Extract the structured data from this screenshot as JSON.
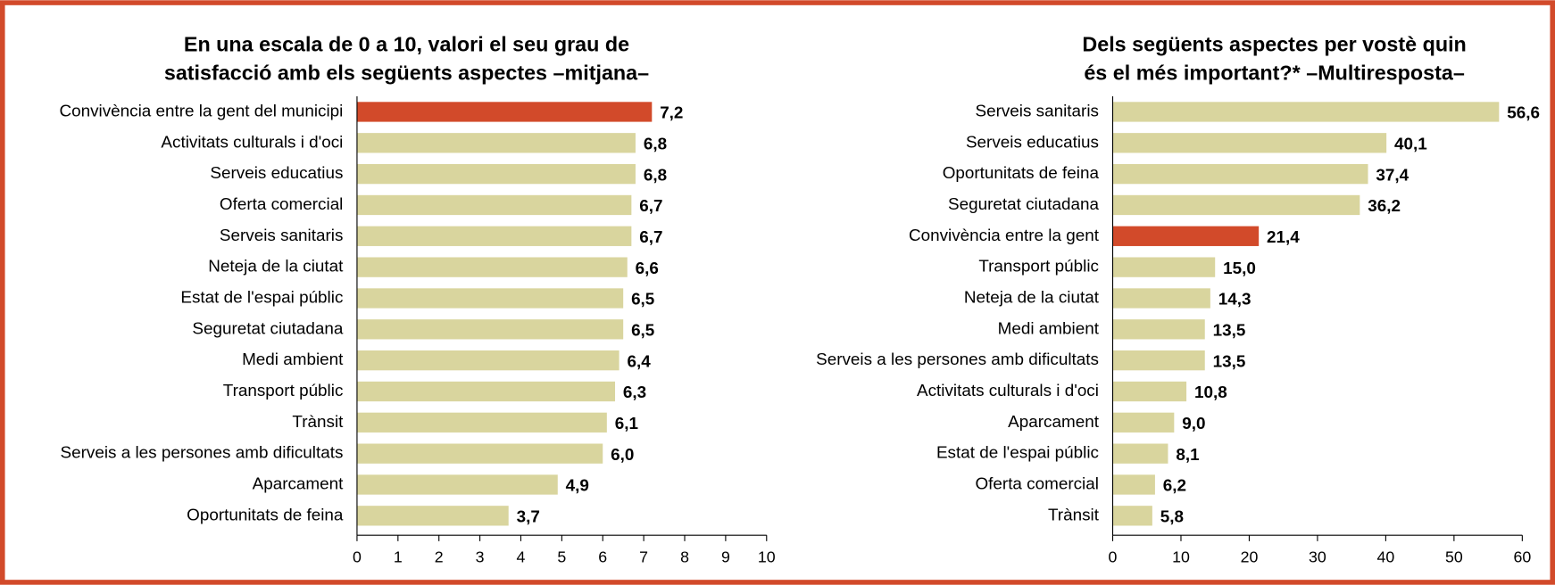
{
  "chart_data": [
    {
      "type": "bar",
      "orientation": "horizontal",
      "title": [
        "En una escala de 0 a 10, valori el seu grau de",
        "satisfacció amb els següents aspectes –mitjana–"
      ],
      "categories": [
        "Convivència entre la gent del municipi",
        "Activitats culturals i d'oci",
        "Serveis educatius",
        "Oferta comercial",
        "Serveis sanitaris",
        "Neteja de la ciutat",
        "Estat de l'espai públic",
        "Seguretat ciutadana",
        "Medi ambient",
        "Transport públic",
        "Trànsit",
        "Serveis a les persones amb dificultats",
        "Aparcament",
        "Oportunitats de feina"
      ],
      "values": [
        7.2,
        6.8,
        6.8,
        6.7,
        6.7,
        6.6,
        6.5,
        6.5,
        6.4,
        6.3,
        6.1,
        6.0,
        4.9,
        3.7
      ],
      "value_labels": [
        "7,2",
        "6,8",
        "6,8",
        "6,7",
        "6,7",
        "6,6",
        "6,5",
        "6,5",
        "6,4",
        "6,3",
        "6,1",
        "6,0",
        "4,9",
        "3,7"
      ],
      "colors": [
        "#d24a2a",
        "#d9d59e",
        "#d9d59e",
        "#d9d59e",
        "#d9d59e",
        "#d9d59e",
        "#d9d59e",
        "#d9d59e",
        "#d9d59e",
        "#d9d59e",
        "#d9d59e",
        "#d9d59e",
        "#d9d59e",
        "#d9d59e"
      ],
      "xlim": [
        0,
        10
      ],
      "xticks": [
        0,
        1,
        2,
        3,
        4,
        5,
        6,
        7,
        8,
        9,
        10
      ],
      "grid": false
    },
    {
      "type": "bar",
      "orientation": "horizontal",
      "title": [
        "Dels següents aspectes per vostè quin",
        "és el més important?* –Multiresposta–"
      ],
      "categories": [
        "Serveis sanitaris",
        "Serveis educatius",
        "Oportunitats de feina",
        "Seguretat ciutadana",
        "Convivència entre la gent",
        "Transport públic",
        "Neteja de la ciutat",
        "Medi ambient",
        "Serveis a les persones amb dificultats",
        "Activitats culturals i d'oci",
        "Aparcament",
        "Estat de l'espai públic",
        "Oferta comercial",
        "Trànsit"
      ],
      "values": [
        56.6,
        40.1,
        37.4,
        36.2,
        21.4,
        15.0,
        14.3,
        13.5,
        13.5,
        10.8,
        9.0,
        8.1,
        6.2,
        5.8
      ],
      "value_labels": [
        "56,6",
        "40,1",
        "37,4",
        "36,2",
        "21,4",
        "15,0",
        "14,3",
        "13,5",
        "13,5",
        "10,8",
        "9,0",
        "8,1",
        "6,2",
        "5,8"
      ],
      "colors": [
        "#d9d59e",
        "#d9d59e",
        "#d9d59e",
        "#d9d59e",
        "#d24a2a",
        "#d9d59e",
        "#d9d59e",
        "#d9d59e",
        "#d9d59e",
        "#d9d59e",
        "#d9d59e",
        "#d9d59e",
        "#d9d59e",
        "#d9d59e"
      ],
      "xlim": [
        0,
        60
      ],
      "xticks": [
        0,
        10,
        20,
        30,
        40,
        50,
        60
      ],
      "grid": false
    }
  ]
}
